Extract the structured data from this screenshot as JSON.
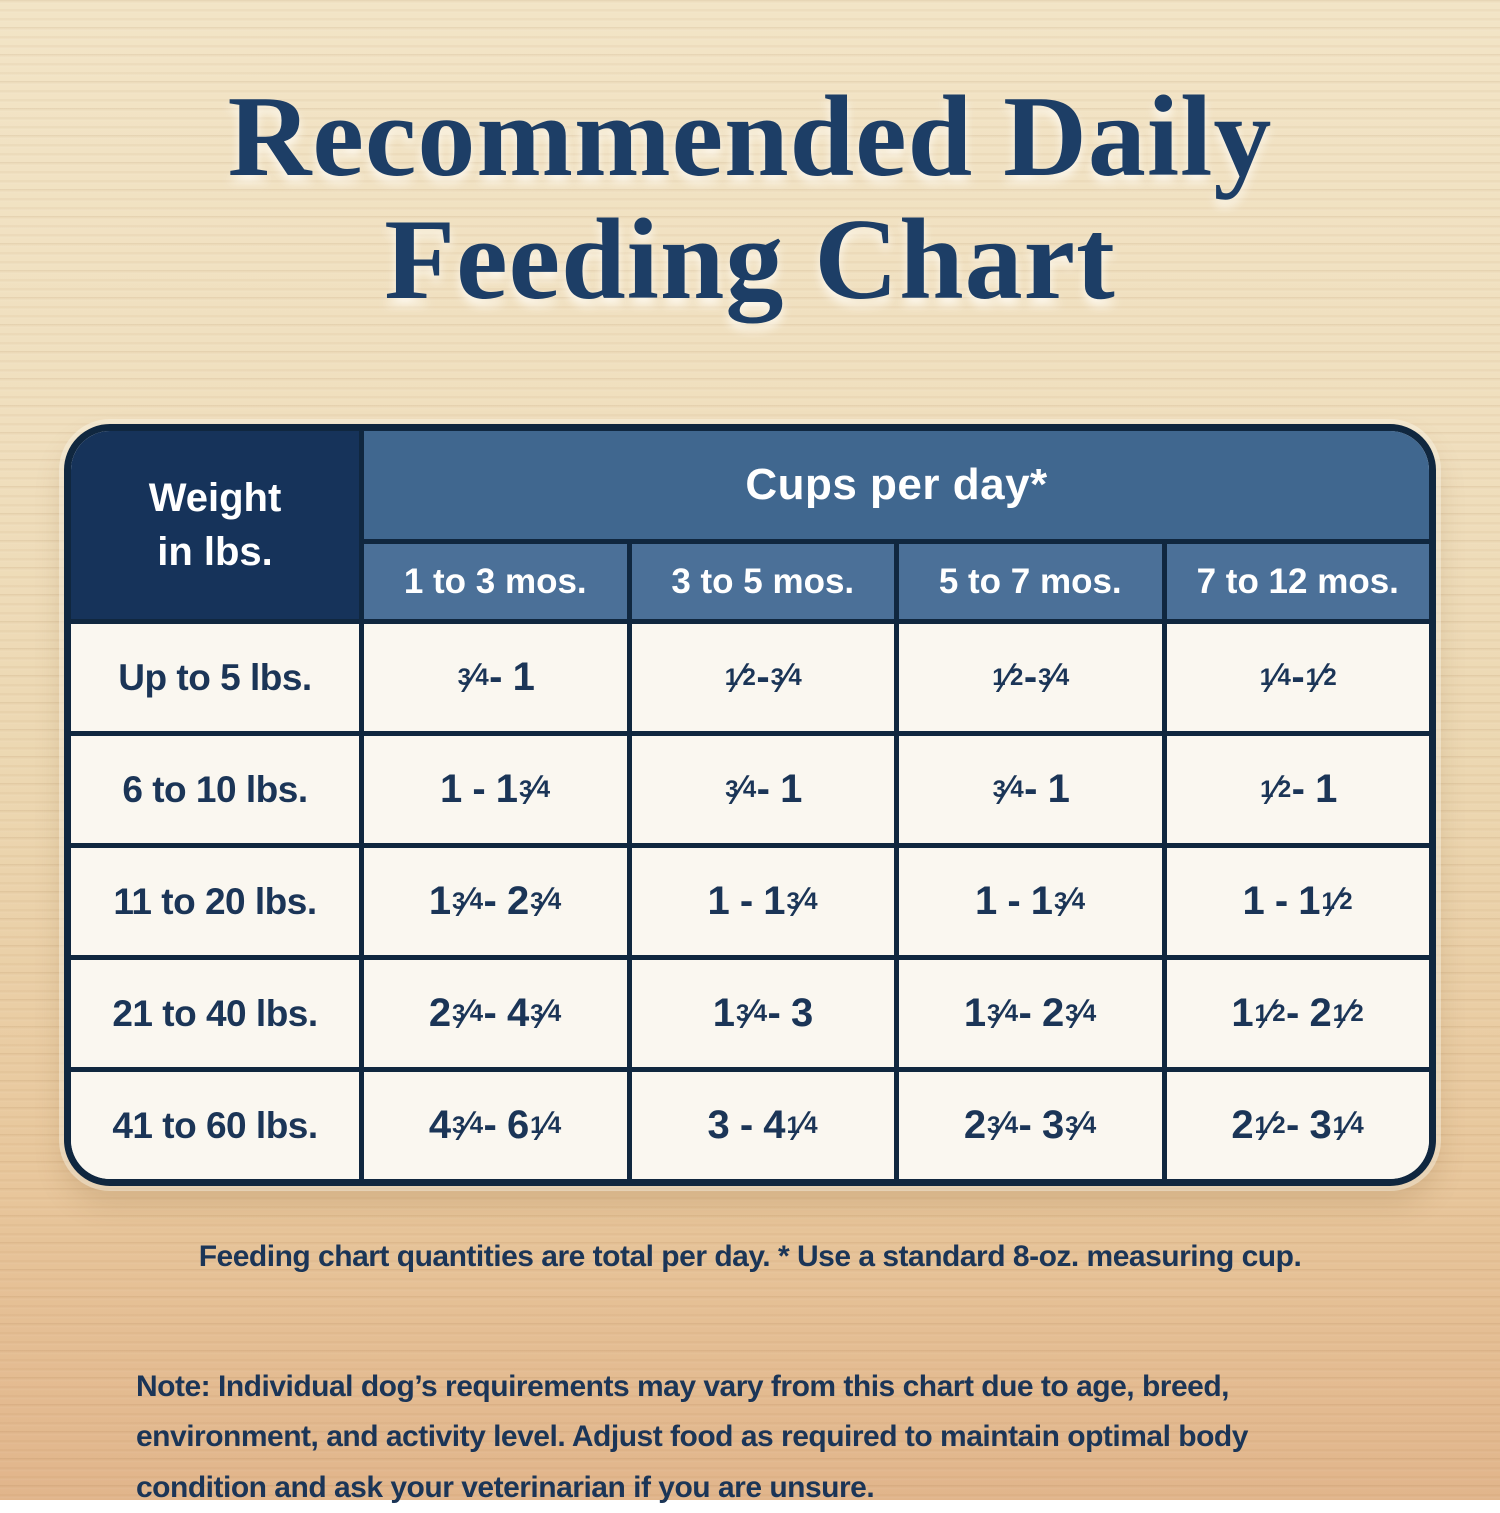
{
  "title": {
    "line1": "Recommended Daily",
    "line2": "Feeding Chart"
  },
  "chart_data": {
    "type": "table",
    "title": "Recommended Daily Feeding Chart",
    "units": "cups per day",
    "corner_header": {
      "line1": "Weight",
      "line2": "in lbs."
    },
    "group_header": "Cups per day*",
    "columns": [
      "1 to 3 mos.",
      "3 to 5 mos.",
      "5 to 7 mos.",
      "7 to 12 mos."
    ],
    "rows": [
      {
        "weight": "Up to 5 lbs.",
        "values": [
          "3/4 - 1",
          "1/2 - 3/4",
          "1/2 - 3/4",
          "1/4 - 1/2"
        ]
      },
      {
        "weight": "6 to 10 lbs.",
        "values": [
          "1 - 1 3/4",
          "3/4 - 1",
          "3/4 - 1",
          "1/2 - 1"
        ]
      },
      {
        "weight": "11 to 20 lbs.",
        "values": [
          "1 3/4 - 2 3/4",
          "1 - 1 3/4",
          "1 - 1 3/4",
          "1 - 1 1/2"
        ]
      },
      {
        "weight": "21 to 40 lbs.",
        "values": [
          "2 3/4 - 4 3/4",
          "1 3/4 - 3",
          "1 3/4 - 2 3/4",
          "1 1/2 - 2 1/2"
        ]
      },
      {
        "weight": "41 to 60 lbs.",
        "values": [
          "4 3/4 - 6 1/4",
          "3 - 4 1/4",
          "2 3/4 - 3 3/4",
          "2 1/2 - 3 1/4"
        ]
      }
    ]
  },
  "footnote": "Feeding chart quantities are total per day. * Use a standard 8-oz. measuring cup.",
  "note": {
    "label": "Note:",
    "lines": [
      "Individual dog’s requirements may vary from this chart due to age, breed,",
      "environment, and activity level. Adjust food as required to maintain optimal body",
      "condition and ask your veterinarian if you are unsure."
    ]
  },
  "colors": {
    "title_navy": "#1d3e66",
    "header_navy": "#16335a",
    "band_blue": "#40678f",
    "subheader_blue": "#4b7098",
    "cell_cream": "#faf7f0",
    "grid_line": "#10273f",
    "text_navy": "#1b3557",
    "wood_top": "#f2e4c6",
    "wood_bottom": "#e1b58b"
  }
}
